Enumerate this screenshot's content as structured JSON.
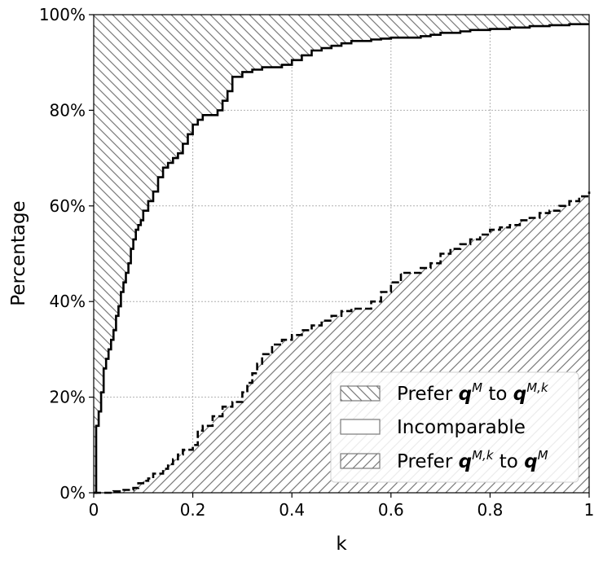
{
  "chart_data": {
    "type": "area",
    "xlabel": "k",
    "ylabel": "Percentage",
    "xlim": [
      0,
      1
    ],
    "ylim": [
      0,
      100
    ],
    "x_ticks": [
      "0",
      "0.2",
      "0.4",
      "0.6",
      "0.8",
      "1"
    ],
    "y_ticks": [
      "0%",
      "20%",
      "40%",
      "60%",
      "80%",
      "100%"
    ],
    "grid": true,
    "legend_position": "bottom-right",
    "legend": [
      {
        "base": "Prefer ",
        "a": "q",
        "a_sup": "M",
        "mid": " to ",
        "b": "q",
        "b_sup": "M,k",
        "hatch": "backslash"
      },
      {
        "base": "Incomparable",
        "hatch": "none"
      },
      {
        "base": "Prefer ",
        "a": "q",
        "a_sup": "M,k",
        "mid": " to ",
        "b": "q",
        "b_sup": "M",
        "hatch": "slash"
      }
    ],
    "series": [
      {
        "name": "upper boundary",
        "style": "solid",
        "x": [
          0,
          0.005,
          0.01,
          0.015,
          0.02,
          0.025,
          0.03,
          0.035,
          0.04,
          0.045,
          0.05,
          0.055,
          0.06,
          0.065,
          0.07,
          0.075,
          0.08,
          0.085,
          0.09,
          0.095,
          0.1,
          0.11,
          0.12,
          0.13,
          0.14,
          0.15,
          0.16,
          0.17,
          0.18,
          0.19,
          0.2,
          0.21,
          0.22,
          0.25,
          0.26,
          0.27,
          0.28,
          0.3,
          0.32,
          0.34,
          0.38,
          0.4,
          0.42,
          0.44,
          0.46,
          0.48,
          0.5,
          0.52,
          0.56,
          0.58,
          0.6,
          0.66,
          0.68,
          0.7,
          0.74,
          0.76,
          0.8,
          0.84,
          0.88,
          0.92,
          0.96,
          1.0
        ],
        "y": [
          0,
          14,
          17,
          21,
          26,
          28,
          30,
          32,
          34,
          37,
          39,
          42,
          44,
          46,
          48,
          51,
          53,
          55,
          56,
          57,
          59,
          61,
          63,
          66,
          68,
          69,
          70,
          71,
          73,
          75,
          77,
          78,
          79,
          80,
          82,
          84,
          87,
          88,
          88.5,
          89,
          89.5,
          90.5,
          91.5,
          92.5,
          93,
          93.5,
          94,
          94.5,
          94.8,
          95,
          95.2,
          95.5,
          95.8,
          96.2,
          96.5,
          96.8,
          97,
          97.3,
          97.6,
          97.8,
          98,
          98
        ]
      },
      {
        "name": "lower boundary",
        "style": "dashed",
        "x": [
          0,
          0.04,
          0.06,
          0.08,
          0.09,
          0.1,
          0.11,
          0.12,
          0.14,
          0.15,
          0.16,
          0.17,
          0.18,
          0.2,
          0.21,
          0.22,
          0.24,
          0.26,
          0.28,
          0.3,
          0.31,
          0.32,
          0.33,
          0.34,
          0.36,
          0.38,
          0.4,
          0.42,
          0.44,
          0.46,
          0.48,
          0.5,
          0.52,
          0.56,
          0.58,
          0.6,
          0.62,
          0.66,
          0.68,
          0.7,
          0.72,
          0.74,
          0.76,
          0.78,
          0.8,
          0.82,
          0.84,
          0.86,
          0.88,
          0.9,
          0.92,
          0.94,
          0.96,
          0.98,
          1.0
        ],
        "y": [
          0,
          0.3,
          0.6,
          1,
          2,
          2.5,
          3,
          4,
          5,
          6,
          7,
          8,
          9,
          10,
          13,
          14,
          16,
          18,
          19,
          21,
          23,
          25,
          27,
          29,
          31,
          32,
          33,
          34,
          35,
          36,
          37,
          38,
          38.5,
          40,
          42,
          44,
          46,
          47,
          48,
          50,
          51,
          52,
          53,
          54,
          55,
          55.5,
          56,
          57,
          57.5,
          58.5,
          59,
          60,
          61,
          62,
          63
        ]
      }
    ]
  }
}
